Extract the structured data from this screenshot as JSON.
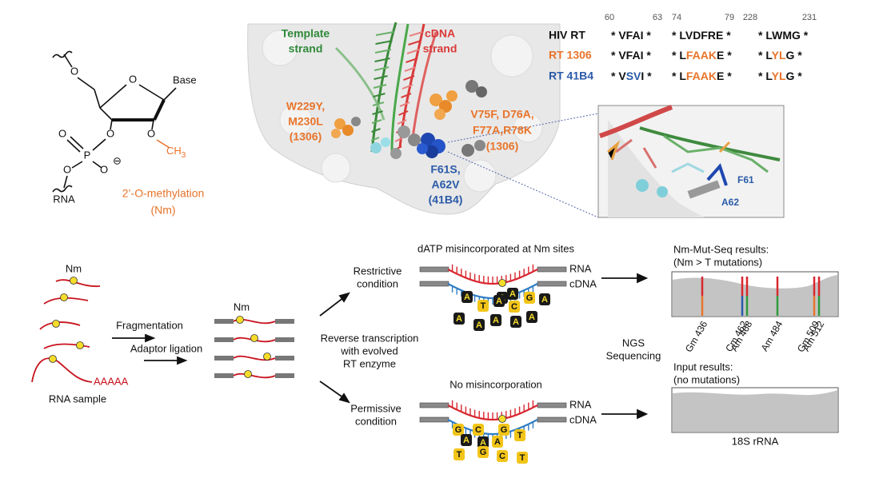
{
  "structure": {
    "atoms": [
      "O",
      "Base",
      "O",
      "O",
      "O",
      "P",
      "O",
      "O",
      "O",
      "RNA"
    ],
    "methyl": [
      "CH",
      "3"
    ],
    "charge": "⊖",
    "caption": [
      "2’-O-methylation",
      "(Nm)"
    ]
  },
  "protein": {
    "template_label": [
      "Template",
      "strand"
    ],
    "cdna_label": [
      "cDNA",
      "strand"
    ],
    "mut_1306_a": [
      "W229Y,",
      "M230L",
      "(1306)"
    ],
    "mut_1306_b": [
      "V75F, D76A,",
      "F77A,R78K",
      "(1306)"
    ],
    "mut_41b4": [
      "F61S,",
      "A62V",
      "(41B4)"
    ],
    "inset_labels": [
      "F61",
      "A62"
    ]
  },
  "alignment": {
    "positions": [
      60,
      63,
      74,
      79,
      228,
      231
    ],
    "rows": [
      {
        "name": "HIV RT",
        "color": "#111111",
        "blocks": [
          [
            {
              "text": "* VFAI *"
            }
          ],
          [
            {
              "text": "* LVDFRE *"
            }
          ],
          [
            {
              "text": "* LWMG *"
            }
          ]
        ]
      },
      {
        "name": "RT 1306",
        "color": "#e8742a",
        "blocks": [
          [
            {
              "text": "* VFAI *"
            }
          ],
          [
            {
              "text": "* L"
            },
            {
              "text": "FAAK",
              "color": "#e8742a"
            },
            {
              "text": "E *"
            }
          ],
          [
            {
              "text": "* L"
            },
            {
              "text": "YL",
              "color": "#e8742a"
            },
            {
              "text": "G *"
            }
          ]
        ]
      },
      {
        "name": "RT 41B4",
        "color": "#2a5aa8",
        "blocks": [
          [
            {
              "text": "* V"
            },
            {
              "text": "SV",
              "color": "#2a5aa8"
            },
            {
              "text": "I *"
            }
          ],
          [
            {
              "text": "* L"
            },
            {
              "text": "FAAK",
              "color": "#e8742a"
            },
            {
              "text": "E *"
            }
          ],
          [
            {
              "text": "* L"
            },
            {
              "text": "YL",
              "color": "#e8742a"
            },
            {
              "text": "G *"
            }
          ]
        ]
      }
    ]
  },
  "workflow": {
    "nm_label": "Nm",
    "polya": "AAAAA",
    "rna_sample": "RNA sample",
    "fragmentation": "Fragmentation",
    "adaptor_ligation": "Adaptor ligation",
    "fragment_nm_label": "Nm",
    "rt_label": [
      "Reverse transcription",
      "with evolved",
      "RT enzyme"
    ],
    "restrictive": {
      "condition": [
        "Restrictive",
        "condition"
      ],
      "title": "dATP misincorporated at Nm sites",
      "strand_labels": [
        "RNA",
        "cDNA"
      ],
      "site_base": "A",
      "nucleotides": [
        {
          "letter": "A",
          "style": "dark"
        },
        {
          "letter": "T",
          "style": "light"
        },
        {
          "letter": "A",
          "style": "dark"
        },
        {
          "letter": "C",
          "style": "light"
        },
        {
          "letter": "G",
          "style": "light"
        },
        {
          "letter": "A",
          "style": "dark"
        },
        {
          "letter": "A",
          "style": "dark"
        },
        {
          "letter": "A",
          "style": "dark"
        },
        {
          "letter": "A",
          "style": "dark"
        },
        {
          "letter": "A",
          "style": "dark"
        },
        {
          "letter": "A",
          "style": "dark"
        },
        {
          "letter": "A",
          "style": "dark"
        }
      ]
    },
    "permissive": {
      "condition": [
        "Permissive",
        "condition"
      ],
      "title": "No misincorporation",
      "strand_labels": [
        "RNA",
        "cDNA"
      ],
      "nucleotides": [
        {
          "letter": "G",
          "style": "light"
        },
        {
          "letter": "C",
          "style": "light"
        },
        {
          "letter": "A",
          "style": "dark"
        },
        {
          "letter": "A",
          "style": "dark"
        },
        {
          "letter": "A",
          "style": "light"
        },
        {
          "letter": "G",
          "style": "light"
        },
        {
          "letter": "T",
          "style": "light"
        },
        {
          "letter": "T",
          "style": "light"
        },
        {
          "letter": "G",
          "style": "light"
        },
        {
          "letter": "C",
          "style": "light"
        },
        {
          "letter": "T",
          "style": "light"
        }
      ]
    },
    "ngs": [
      "NGS",
      "Sequencing"
    ],
    "results": {
      "title": [
        "Nm-Mut-Seq results:",
        "(Nm > T mutations)"
      ],
      "sites": [
        {
          "label": "Gm 436",
          "color": "#e8742a"
        },
        {
          "label": "Cm 462",
          "color": "#2a5aa8"
        },
        {
          "label": "Am 468",
          "color": "#2f9a3a"
        },
        {
          "label": "Am 484",
          "color": "#2f9a3a"
        },
        {
          "label": "Gm 509",
          "color": "#e8742a"
        },
        {
          "label": "Am 512",
          "color": "#2f9a3a"
        }
      ]
    },
    "input": {
      "title": [
        "Input results:",
        "(no mutations)"
      ]
    },
    "rrna": "18S rRNA"
  }
}
